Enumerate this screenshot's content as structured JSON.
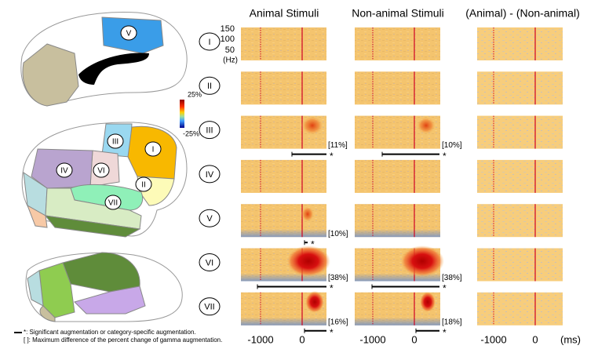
{
  "column_titles": [
    "Animal Stimuli",
    "Non-animal Stimuli",
    "(Animal) - (Non-animal)"
  ],
  "freq_axis_labels": [
    "150",
    "100",
    "50",
    "(Hz)"
  ],
  "time_axis": {
    "labels": [
      "-1000",
      "0"
    ],
    "unit": "(ms)"
  },
  "colorbar": {
    "max": "25%",
    "min": "-25%"
  },
  "significance_mark": "*",
  "rows": [
    {
      "label": "I"
    },
    {
      "label": "II"
    },
    {
      "label": "III",
      "animal": "[11%]",
      "non_animal": "[10%]"
    },
    {
      "label": "IV"
    },
    {
      "label": "V",
      "animal": "[10%]"
    },
    {
      "label": "VI",
      "animal": "[38%]",
      "non_animal": "[38%]"
    },
    {
      "label": "VII",
      "animal": "[16%]",
      "non_animal": "[18%]"
    }
  ],
  "brain_labels": [
    "V",
    "I",
    "II",
    "III",
    "IV",
    "VI",
    "VII"
  ],
  "legend": [
    "*: Significant augmentation or category-specific augmentation.",
    "[ ]: Maximum difference of the percent change of gamma augmentation."
  ]
}
